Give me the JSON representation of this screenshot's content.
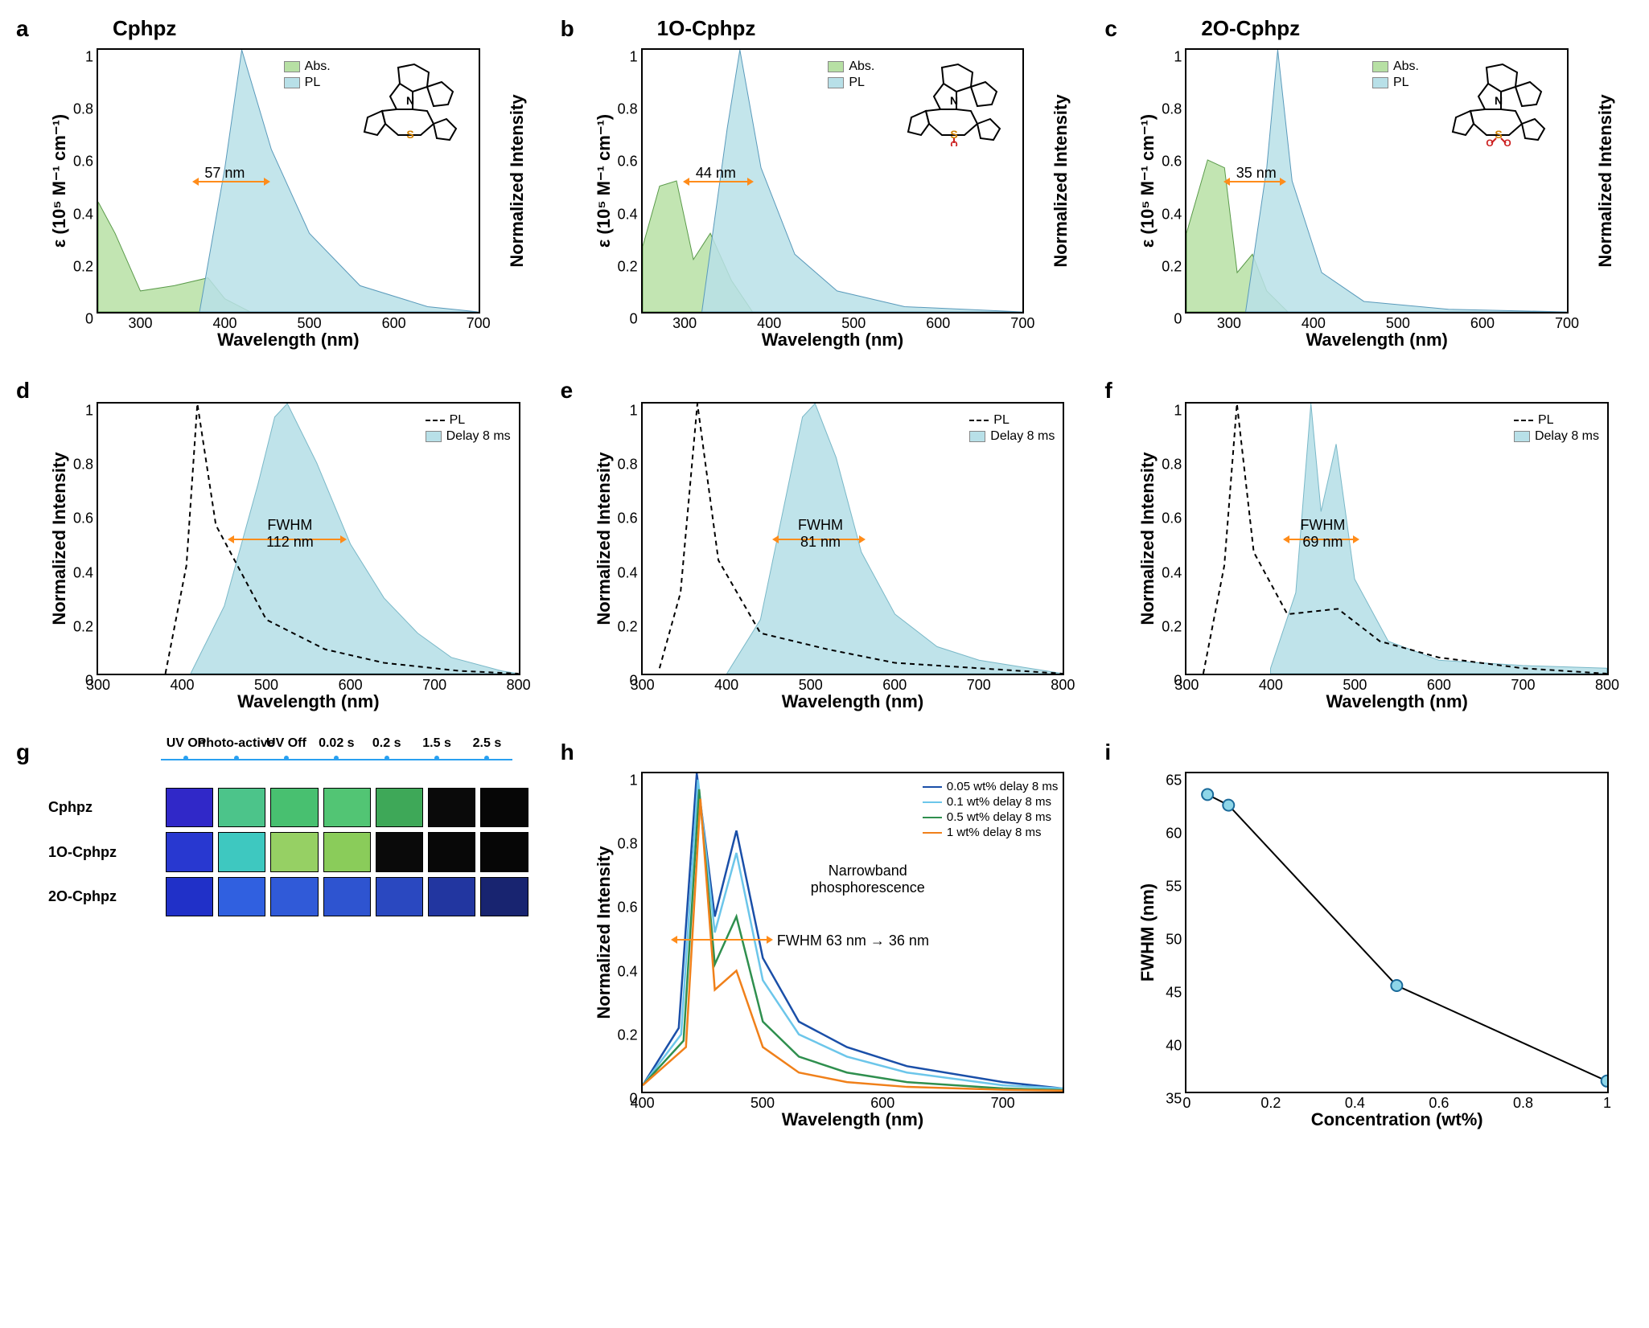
{
  "panels": {
    "a": {
      "label": "a",
      "title": "Cphpz",
      "fwhm_annot": "57 nm",
      "arrow_color": "#ff8c1a",
      "xlim": [
        250,
        700
      ],
      "xticks": [
        300,
        400,
        500,
        600,
        700
      ],
      "ylim": [
        0,
        1.0
      ],
      "yticks": [
        0.0,
        0.2,
        0.4,
        0.6,
        0.8,
        1.0
      ],
      "ylabel_left": "ε (10⁵ M⁻¹ cm⁻¹)",
      "ylabel_right": "Normalized Intensity",
      "xlabel": "Wavelength (nm)",
      "abs_color": "#b7e0a4",
      "pl_color": "#b8e0e8",
      "legend": [
        {
          "label": "Abs.",
          "color": "#b7e0a4"
        },
        {
          "label": "PL",
          "color": "#b8e0e8"
        }
      ],
      "abs_points": [
        [
          250,
          0.42
        ],
        [
          270,
          0.3
        ],
        [
          300,
          0.08
        ],
        [
          340,
          0.1
        ],
        [
          380,
          0.13
        ],
        [
          400,
          0.05
        ],
        [
          430,
          0
        ]
      ],
      "pl_points": [
        [
          370,
          0
        ],
        [
          400,
          0.55
        ],
        [
          420,
          1.0
        ],
        [
          455,
          0.62
        ],
        [
          500,
          0.3
        ],
        [
          560,
          0.1
        ],
        [
          640,
          0.02
        ],
        [
          700,
          0
        ]
      ],
      "structure_svg": "cphpz"
    },
    "b": {
      "label": "b",
      "title": "1O-Cphpz",
      "fwhm_annot": "44 nm",
      "arrow_color": "#ff8c1a",
      "xlim": [
        250,
        700
      ],
      "xticks": [
        300,
        400,
        500,
        600,
        700
      ],
      "ylim": [
        0,
        1.0
      ],
      "yticks": [
        0.0,
        0.2,
        0.4,
        0.6,
        0.8,
        1.0
      ],
      "ylabel_left": "ε (10⁵ M⁻¹ cm⁻¹)",
      "ylabel_right": "Normalized Intensity",
      "xlabel": "Wavelength (nm)",
      "abs_color": "#b7e0a4",
      "pl_color": "#b8e0e8",
      "legend": [
        {
          "label": "Abs.",
          "color": "#b7e0a4"
        },
        {
          "label": "PL",
          "color": "#b8e0e8"
        }
      ],
      "abs_points": [
        [
          250,
          0.25
        ],
        [
          270,
          0.48
        ],
        [
          290,
          0.5
        ],
        [
          310,
          0.2
        ],
        [
          330,
          0.3
        ],
        [
          355,
          0.12
        ],
        [
          380,
          0
        ]
      ],
      "pl_points": [
        [
          320,
          0
        ],
        [
          350,
          0.7
        ],
        [
          365,
          1.0
        ],
        [
          390,
          0.55
        ],
        [
          430,
          0.22
        ],
        [
          480,
          0.08
        ],
        [
          560,
          0.02
        ],
        [
          700,
          0
        ]
      ],
      "structure_svg": "1o-cphpz"
    },
    "c": {
      "label": "c",
      "title": "2O-Cphpz",
      "fwhm_annot": "35 nm",
      "arrow_color": "#ff8c1a",
      "xlim": [
        250,
        700
      ],
      "xticks": [
        300,
        400,
        500,
        600,
        700
      ],
      "ylim": [
        0,
        1.0
      ],
      "yticks": [
        0.0,
        0.2,
        0.4,
        0.6,
        0.8,
        1.0
      ],
      "ylabel_left": "ε (10⁵ M⁻¹ cm⁻¹)",
      "ylabel_right": "Normalized Intensity",
      "xlabel": "Wavelength (nm)",
      "abs_color": "#b7e0a4",
      "pl_color": "#b8e0e8",
      "legend": [
        {
          "label": "Abs.",
          "color": "#b7e0a4"
        },
        {
          "label": "PL",
          "color": "#b8e0e8"
        }
      ],
      "abs_points": [
        [
          250,
          0.3
        ],
        [
          275,
          0.58
        ],
        [
          295,
          0.55
        ],
        [
          310,
          0.15
        ],
        [
          328,
          0.22
        ],
        [
          345,
          0.08
        ],
        [
          370,
          0
        ]
      ],
      "pl_points": [
        [
          320,
          0
        ],
        [
          345,
          0.55
        ],
        [
          358,
          1.0
        ],
        [
          375,
          0.5
        ],
        [
          410,
          0.15
        ],
        [
          460,
          0.04
        ],
        [
          560,
          0.01
        ],
        [
          700,
          0
        ]
      ],
      "structure_svg": "2o-cphpz"
    },
    "d": {
      "label": "d",
      "xlim": [
        300,
        800
      ],
      "xticks": [
        300,
        400,
        500,
        600,
        700,
        800
      ],
      "ylim": [
        0,
        1.0
      ],
      "yticks": [
        0.0,
        0.2,
        0.4,
        0.6,
        0.8,
        1.0
      ],
      "ylabel_left": "Normalized Intensity",
      "xlabel": "Wavelength (nm)",
      "delay_color": "#b8e0e8",
      "legend": [
        {
          "type": "dash",
          "label": "PL"
        },
        {
          "type": "swatch",
          "label": "Delay 8 ms",
          "color": "#b8e0e8"
        }
      ],
      "fwhm_label": "FWHM",
      "fwhm_value": "112 nm",
      "pl_dash": [
        [
          380,
          0
        ],
        [
          405,
          0.4
        ],
        [
          418,
          1.0
        ],
        [
          440,
          0.55
        ],
        [
          500,
          0.2
        ],
        [
          570,
          0.09
        ],
        [
          640,
          0.04
        ],
        [
          730,
          0.01
        ],
        [
          800,
          0
        ]
      ],
      "delay_points": [
        [
          410,
          0
        ],
        [
          450,
          0.25
        ],
        [
          490,
          0.7
        ],
        [
          510,
          0.95
        ],
        [
          525,
          1.0
        ],
        [
          560,
          0.78
        ],
        [
          600,
          0.48
        ],
        [
          640,
          0.28
        ],
        [
          680,
          0.15
        ],
        [
          720,
          0.06
        ],
        [
          780,
          0.01
        ],
        [
          800,
          0
        ]
      ]
    },
    "e": {
      "label": "e",
      "xlim": [
        300,
        800
      ],
      "xticks": [
        300,
        400,
        500,
        600,
        700,
        800
      ],
      "ylim": [
        0,
        1.0
      ],
      "yticks": [
        0.0,
        0.2,
        0.4,
        0.6,
        0.8,
        1.0
      ],
      "ylabel_left": "Normalized Intensity",
      "xlabel": "Wavelength (nm)",
      "delay_color": "#b8e0e8",
      "legend": [
        {
          "type": "dash",
          "label": "PL"
        },
        {
          "type": "swatch",
          "label": "Delay 8 ms",
          "color": "#b8e0e8"
        }
      ],
      "fwhm_label": "FWHM",
      "fwhm_value": "81 nm",
      "pl_dash": [
        [
          320,
          0.02
        ],
        [
          345,
          0.3
        ],
        [
          365,
          1.0
        ],
        [
          390,
          0.42
        ],
        [
          440,
          0.15
        ],
        [
          520,
          0.09
        ],
        [
          600,
          0.04
        ],
        [
          700,
          0.02
        ],
        [
          800,
          0
        ]
      ],
      "delay_points": [
        [
          400,
          0
        ],
        [
          440,
          0.2
        ],
        [
          470,
          0.65
        ],
        [
          490,
          0.95
        ],
        [
          505,
          1.0
        ],
        [
          530,
          0.8
        ],
        [
          560,
          0.45
        ],
        [
          600,
          0.22
        ],
        [
          650,
          0.1
        ],
        [
          700,
          0.05
        ],
        [
          780,
          0.01
        ],
        [
          800,
          0
        ]
      ]
    },
    "f": {
      "label": "f",
      "xlim": [
        300,
        800
      ],
      "xticks": [
        300,
        400,
        500,
        600,
        700,
        800
      ],
      "ylim": [
        0,
        1.0
      ],
      "yticks": [
        0.0,
        0.2,
        0.4,
        0.6,
        0.8,
        1.0
      ],
      "ylabel_left": "Normalized Intensity",
      "xlabel": "Wavelength (nm)",
      "delay_color": "#b8e0e8",
      "legend": [
        {
          "type": "dash",
          "label": "PL"
        },
        {
          "type": "swatch",
          "label": "Delay 8 ms",
          "color": "#b8e0e8"
        }
      ],
      "fwhm_label": "FWHM",
      "fwhm_value": "69 nm",
      "pl_dash": [
        [
          320,
          0
        ],
        [
          345,
          0.4
        ],
        [
          360,
          1.0
        ],
        [
          380,
          0.45
        ],
        [
          420,
          0.22
        ],
        [
          480,
          0.24
        ],
        [
          530,
          0.12
        ],
        [
          600,
          0.06
        ],
        [
          700,
          0.02
        ],
        [
          800,
          0
        ]
      ],
      "delay_points": [
        [
          400,
          0.02
        ],
        [
          430,
          0.3
        ],
        [
          448,
          1.0
        ],
        [
          460,
          0.6
        ],
        [
          478,
          0.85
        ],
        [
          500,
          0.35
        ],
        [
          540,
          0.12
        ],
        [
          600,
          0.05
        ],
        [
          700,
          0.03
        ],
        [
          800,
          0.02
        ]
      ]
    },
    "g": {
      "label": "g",
      "headers": [
        "UV On",
        "Photo-active",
        "UV Off",
        "0.02 s",
        "0.2 s",
        "1.5 s",
        "2.5 s"
      ],
      "row_labels": [
        "Cphpz",
        "1O-Cphpz",
        "2O-Cphpz"
      ],
      "colors": [
        [
          "#3028c8",
          "#4cc48a",
          "#48c070",
          "#52c574",
          "#3ea858",
          "#0a0a0a",
          "#060606"
        ],
        [
          "#2838d0",
          "#3ec8c0",
          "#96d064",
          "#8acc5a",
          "#0a0a0a",
          "#080808",
          "#060606"
        ],
        [
          "#2030c8",
          "#3060e0",
          "#305ad8",
          "#2e54d0",
          "#2a48c0",
          "#2236a0",
          "#182470"
        ]
      ]
    },
    "h": {
      "label": "h",
      "xlim": [
        400,
        750
      ],
      "xticks": [
        400,
        500,
        600,
        700
      ],
      "ylim": [
        0,
        1.0
      ],
      "yticks": [
        0.0,
        0.2,
        0.4,
        0.6,
        0.8,
        1.0
      ],
      "ylabel_left": "Normalized Intensity",
      "xlabel": "Wavelength (nm)",
      "annot1": "Narrowband",
      "annot2": "phosphorescence",
      "annot3": "FWHM 63 nm → 36 nm",
      "series": [
        {
          "label": "0.05 wt% delay 8 ms",
          "color": "#1a4fa8",
          "points": [
            [
              400,
              0.02
            ],
            [
              430,
              0.2
            ],
            [
              445,
              1.0
            ],
            [
              460,
              0.55
            ],
            [
              478,
              0.82
            ],
            [
              500,
              0.42
            ],
            [
              530,
              0.22
            ],
            [
              570,
              0.14
            ],
            [
              620,
              0.08
            ],
            [
              700,
              0.03
            ],
            [
              750,
              0.01
            ]
          ]
        },
        {
          "label": "0.1 wt% delay 8 ms",
          "color": "#6cc6ea",
          "points": [
            [
              400,
              0.02
            ],
            [
              432,
              0.18
            ],
            [
              446,
              0.98
            ],
            [
              460,
              0.5
            ],
            [
              478,
              0.75
            ],
            [
              500,
              0.35
            ],
            [
              530,
              0.18
            ],
            [
              570,
              0.11
            ],
            [
              620,
              0.06
            ],
            [
              700,
              0.02
            ],
            [
              750,
              0.01
            ]
          ]
        },
        {
          "label": "0.5 wt% delay 8 ms",
          "color": "#2f8f4e",
          "points": [
            [
              400,
              0.02
            ],
            [
              434,
              0.16
            ],
            [
              447,
              0.95
            ],
            [
              460,
              0.4
            ],
            [
              478,
              0.55
            ],
            [
              500,
              0.22
            ],
            [
              530,
              0.11
            ],
            [
              570,
              0.06
            ],
            [
              620,
              0.03
            ],
            [
              700,
              0.01
            ],
            [
              750,
              0.005
            ]
          ]
        },
        {
          "label": "1 wt% delay 8 ms",
          "color": "#f0801a",
          "points": [
            [
              400,
              0.02
            ],
            [
              436,
              0.14
            ],
            [
              448,
              0.92
            ],
            [
              460,
              0.32
            ],
            [
              478,
              0.38
            ],
            [
              500,
              0.14
            ],
            [
              530,
              0.06
            ],
            [
              570,
              0.03
            ],
            [
              620,
              0.015
            ],
            [
              700,
              0.006
            ],
            [
              750,
              0.003
            ]
          ]
        }
      ]
    },
    "i": {
      "label": "i",
      "xlim": [
        0,
        1.0
      ],
      "xticks": [
        0.0,
        0.2,
        0.4,
        0.6,
        0.8,
        1.0
      ],
      "ylim": [
        35,
        65
      ],
      "yticks": [
        35,
        40,
        45,
        50,
        55,
        60,
        65
      ],
      "ylabel_left": "FWHM (nm)",
      "xlabel": "Concentration (wt%)",
      "line_color": "#000000",
      "marker_fill": "#8ed6e8",
      "marker_stroke": "#1a6a9a",
      "points": [
        [
          0.05,
          63
        ],
        [
          0.1,
          62
        ],
        [
          0.5,
          45
        ],
        [
          1.0,
          36
        ]
      ]
    }
  },
  "colors": {
    "axis": "#000000",
    "background": "#ffffff",
    "arrow": "#ff8c1a",
    "timeline": "#2aa0f0"
  },
  "fonts": {
    "panel_label_pt": 20,
    "panel_title_pt": 18,
    "axis_label_pt": 16,
    "tick_pt": 13,
    "legend_pt": 12
  }
}
